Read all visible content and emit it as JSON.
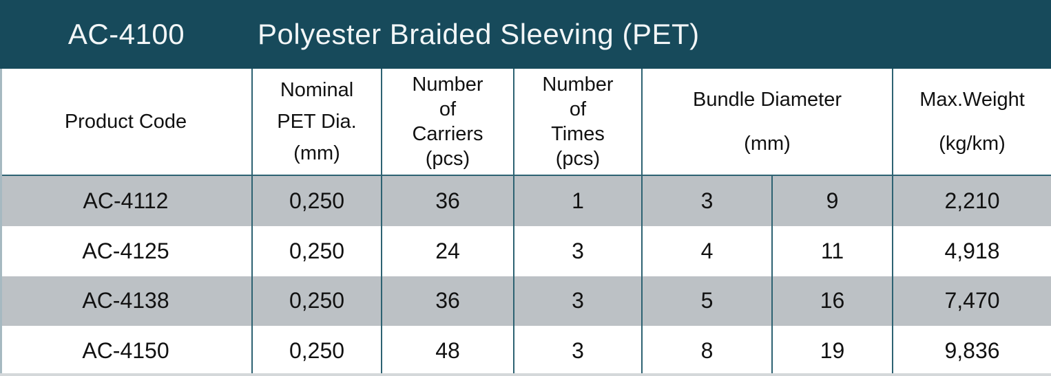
{
  "title_bar": {
    "series_code": "AC-4100",
    "product_name": "Polyester Braided Sleeving (PET)"
  },
  "table": {
    "columns": {
      "product_code": {
        "label": "Product Code"
      },
      "nominal_pet_dia": {
        "lines": [
          "Nominal",
          "PET Dia.",
          "(mm)"
        ]
      },
      "number_of_carriers": {
        "lines": [
          "Number",
          "of",
          "Carriers",
          "(pcs)"
        ]
      },
      "number_of_times": {
        "lines": [
          "Number",
          "of",
          "Times",
          "(pcs)"
        ]
      },
      "bundle_diameter": {
        "lines": [
          "Bundle Diameter",
          "(mm)"
        ]
      },
      "max_weight": {
        "lines": [
          "Max.Weight",
          "(kg/km)"
        ]
      }
    },
    "rows": [
      {
        "cells": [
          "AC-4112",
          "0,250",
          "36",
          "1",
          "3",
          "9",
          "2,210"
        ]
      },
      {
        "cells": [
          "AC-4125",
          "0,250",
          "24",
          "3",
          "4",
          "11",
          "4,918"
        ]
      },
      {
        "cells": [
          "AC-4138",
          "0,250",
          "36",
          "3",
          "5",
          "16",
          "7,470"
        ]
      },
      {
        "cells": [
          "AC-4150",
          "0,250",
          "48",
          "3",
          "8",
          "19",
          "9,836"
        ]
      }
    ]
  },
  "colors": {
    "header_teal": "#174a5b",
    "grid_line": "#2d6272",
    "row_alt_gray": "#bcc1c5",
    "row_white": "#ffffff",
    "left_edge": "#a6b9c1",
    "bottom_edge": "#d4d8da"
  }
}
